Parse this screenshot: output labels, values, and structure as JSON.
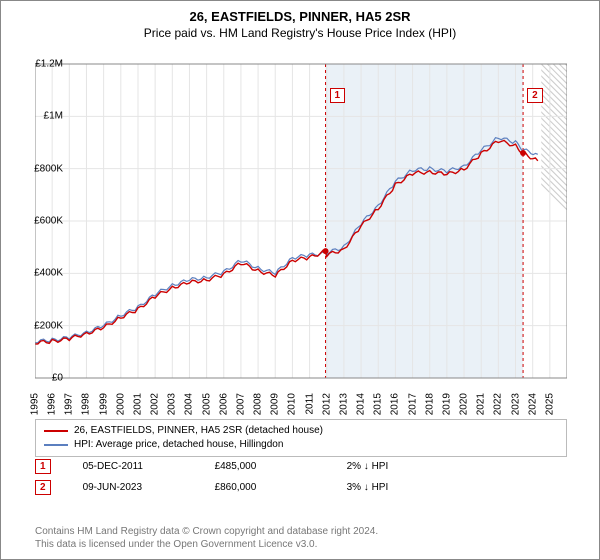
{
  "title_line1": "26, EASTFIELDS, PINNER, HA5 2SR",
  "title_line2": "Price paid vs. HM Land Registry's House Price Index (HPI)",
  "chart": {
    "type": "line",
    "ylim": [
      0,
      1200000
    ],
    "xlim": [
      1995,
      2026
    ],
    "ytick_labels": [
      "£0",
      "£200K",
      "£400K",
      "£600K",
      "£800K",
      "£1M",
      "£1.2M"
    ],
    "ytick_vals": [
      0,
      200000,
      400000,
      600000,
      800000,
      1000000,
      1200000
    ],
    "xtick_years": [
      1995,
      1996,
      1997,
      1998,
      1999,
      2000,
      2001,
      2002,
      2003,
      2004,
      2005,
      2006,
      2007,
      2008,
      2009,
      2010,
      2011,
      2012,
      2013,
      2014,
      2015,
      2016,
      2017,
      2018,
      2019,
      2020,
      2021,
      2022,
      2023,
      2024,
      2025
    ],
    "grid_color": "#e5e5e5",
    "background_color": "#ffffff",
    "shade_band": {
      "x_start": 2011.93,
      "x_end": 2023.44,
      "fill": "#e6eef6"
    },
    "future_hatch_start": 2024.5,
    "series": [
      {
        "name": "HPI: Average price, detached house, Hillingdon",
        "color": "#5b7fbf",
        "width": 1.2,
        "points": [
          [
            1995,
            140000
          ],
          [
            1996,
            145000
          ],
          [
            1997,
            155000
          ],
          [
            1998,
            175000
          ],
          [
            1999,
            200000
          ],
          [
            2000,
            240000
          ],
          [
            2001,
            270000
          ],
          [
            2002,
            320000
          ],
          [
            2003,
            355000
          ],
          [
            2004,
            375000
          ],
          [
            2005,
            385000
          ],
          [
            2006,
            405000
          ],
          [
            2007,
            450000
          ],
          [
            2008,
            420000
          ],
          [
            2009,
            400000
          ],
          [
            2010,
            460000
          ],
          [
            2011,
            470000
          ],
          [
            2012,
            478000
          ],
          [
            2013,
            500000
          ],
          [
            2014,
            590000
          ],
          [
            2015,
            660000
          ],
          [
            2016,
            750000
          ],
          [
            2017,
            795000
          ],
          [
            2018,
            800000
          ],
          [
            2019,
            790000
          ],
          [
            2020,
            810000
          ],
          [
            2021,
            870000
          ],
          [
            2022,
            920000
          ],
          [
            2023,
            900000
          ],
          [
            2023.5,
            870000
          ],
          [
            2024.3,
            855000
          ]
        ]
      },
      {
        "name": "26, EASTFIELDS, PINNER, HA5 2SR (detached house)",
        "color": "#cc0000",
        "width": 1.4,
        "points": [
          [
            1995,
            135000
          ],
          [
            1996,
            140000
          ],
          [
            1997,
            150000
          ],
          [
            1998,
            170000
          ],
          [
            1999,
            192000
          ],
          [
            2000,
            232000
          ],
          [
            2001,
            262000
          ],
          [
            2002,
            312000
          ],
          [
            2003,
            345000
          ],
          [
            2004,
            365000
          ],
          [
            2005,
            375000
          ],
          [
            2006,
            395000
          ],
          [
            2007,
            440000
          ],
          [
            2008,
            410000
          ],
          [
            2009,
            390000
          ],
          [
            2010,
            450000
          ],
          [
            2011,
            460000
          ],
          [
            2011.93,
            485000
          ],
          [
            2012,
            470000
          ],
          [
            2013,
            492000
          ],
          [
            2014,
            580000
          ],
          [
            2015,
            648000
          ],
          [
            2016,
            738000
          ],
          [
            2017,
            782000
          ],
          [
            2018,
            788000
          ],
          [
            2019,
            778000
          ],
          [
            2020,
            798000
          ],
          [
            2021,
            857000
          ],
          [
            2022,
            907000
          ],
          [
            2023,
            888000
          ],
          [
            2023.44,
            860000
          ],
          [
            2024.3,
            830000
          ]
        ]
      }
    ],
    "markers": [
      {
        "label": "1",
        "year": 2011.93,
        "value": 485000
      },
      {
        "label": "2",
        "year": 2023.44,
        "value": 860000
      }
    ]
  },
  "legend": {
    "items": [
      {
        "color": "#cc0000",
        "text": "26, EASTFIELDS, PINNER, HA5 2SR (detached house)"
      },
      {
        "color": "#5b7fbf",
        "text": "HPI: Average price, detached house, Hillingdon"
      }
    ]
  },
  "data_points": [
    {
      "label": "1",
      "date": "05-DEC-2011",
      "price": "£485,000",
      "delta": "2% ↓ HPI"
    },
    {
      "label": "2",
      "date": "09-JUN-2023",
      "price": "£860,000",
      "delta": "3% ↓ HPI"
    }
  ],
  "footer": {
    "line1": "Contains HM Land Registry data © Crown copyright and database right 2024.",
    "line2": "This data is licensed under the Open Government Licence v3.0."
  }
}
